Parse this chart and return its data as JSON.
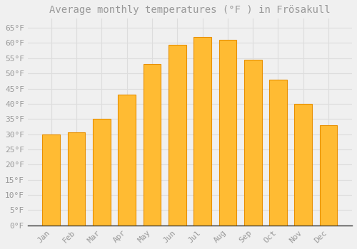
{
  "title": "Average monthly temperatures (°F ) in Frösakull",
  "months": [
    "Jan",
    "Feb",
    "Mar",
    "Apr",
    "May",
    "Jun",
    "Jul",
    "Aug",
    "Sep",
    "Oct",
    "Nov",
    "Dec"
  ],
  "values": [
    30,
    30.5,
    35,
    43,
    53,
    59.5,
    62,
    61,
    54.5,
    48,
    40,
    33
  ],
  "bar_color": "#FFBB33",
  "bar_edge_color": "#E89000",
  "background_color": "#F0F0F0",
  "plot_bg_color": "#F0F0F0",
  "grid_color": "#DDDDDD",
  "text_color": "#999999",
  "spine_color": "#333333",
  "ylim": [
    0,
    68
  ],
  "yticks": [
    0,
    5,
    10,
    15,
    20,
    25,
    30,
    35,
    40,
    45,
    50,
    55,
    60,
    65
  ],
  "ytick_labels": [
    "0°F",
    "5°F",
    "10°F",
    "15°F",
    "20°F",
    "25°F",
    "30°F",
    "35°F",
    "40°F",
    "45°F",
    "50°F",
    "55°F",
    "60°F",
    "65°F"
  ],
  "title_fontsize": 10,
  "tick_fontsize": 8,
  "bar_width": 0.7
}
